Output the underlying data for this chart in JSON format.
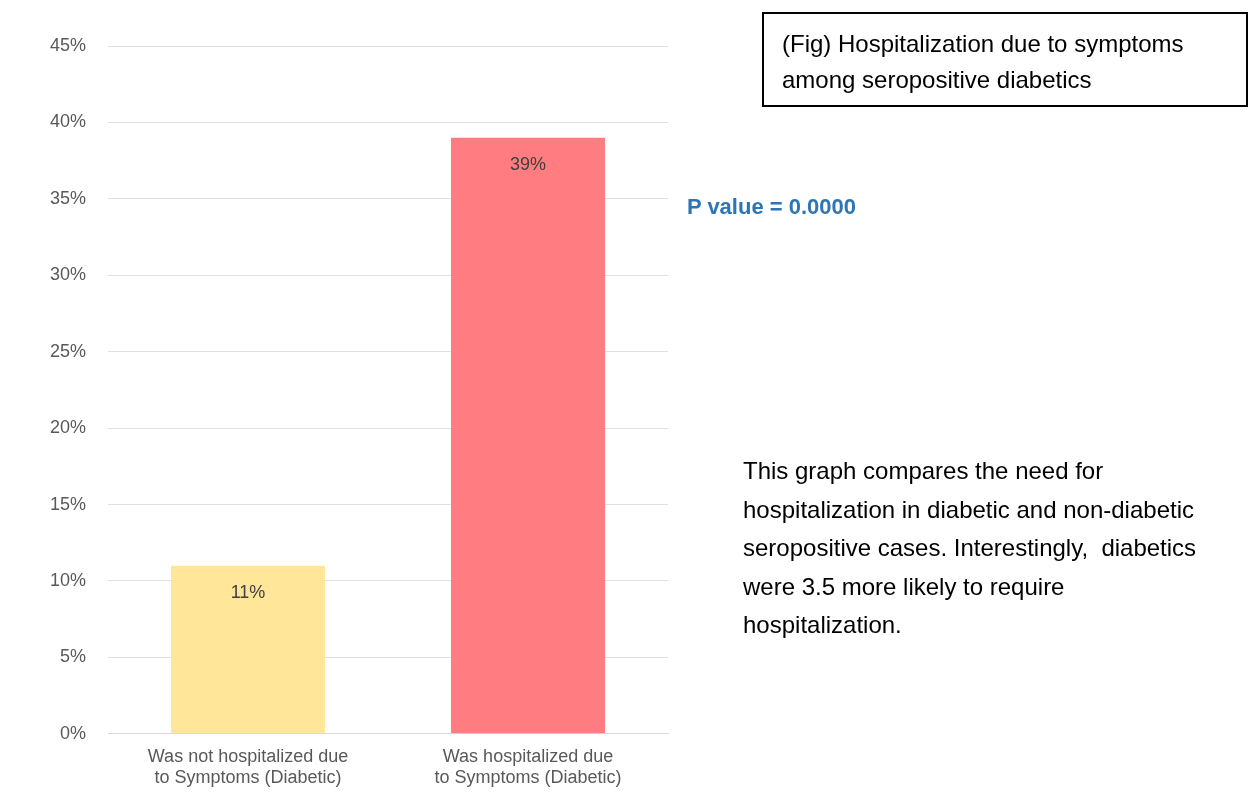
{
  "chart_data": {
    "type": "bar",
    "title": "(Fig) Hospitalization due to symptoms among seropositive diabetics",
    "categories": [
      "Was not hospitalized due to Symptoms (Diabetic)",
      "Was hospitalized due to Symptoms (Diabetic)"
    ],
    "values": [
      11,
      39
    ],
    "colors": [
      "#ffe699",
      "#ff7c80"
    ],
    "value_labels": [
      "11%",
      "39%"
    ],
    "ylim": [
      0,
      45
    ],
    "yticks": [
      {
        "value": 0,
        "label": "0%"
      },
      {
        "value": 5,
        "label": "5%"
      },
      {
        "value": 10,
        "label": "10%"
      },
      {
        "value": 15,
        "label": "15%"
      },
      {
        "value": 20,
        "label": "20%"
      },
      {
        "value": 25,
        "label": "25%"
      },
      {
        "value": 30,
        "label": "30%"
      },
      {
        "value": 35,
        "label": "35%"
      },
      {
        "value": 40,
        "label": "40%"
      },
      {
        "value": 45,
        "label": "45%"
      }
    ],
    "grid": "y",
    "legend": false,
    "annotations": [
      "P value = 0.0000",
      "This graph compares the need for hospitalization in diabetic and non-diabetic seropositive cases. Interestingly,  diabetics were 3.5 more likely to require hospitalization."
    ]
  }
}
